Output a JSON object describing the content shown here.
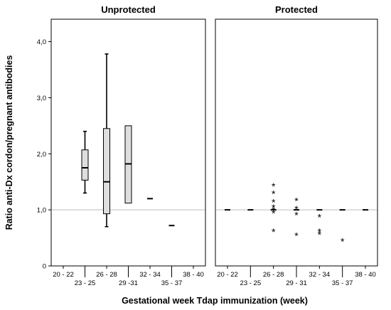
{
  "chart_data": {
    "type": "box",
    "xlabel": "Gestational week Tdap immunization (week)",
    "ylabel": "Ratio anti-Dx cordon/pregnant antibodies",
    "ylim": [
      0,
      4.4
    ],
    "yticks": [
      {
        "value": 0,
        "label": "0"
      },
      {
        "value": 1,
        "label": "1,0"
      },
      {
        "value": 2,
        "label": "2,0"
      },
      {
        "value": 3,
        "label": "3,0"
      },
      {
        "value": 4,
        "label": "4,0"
      }
    ],
    "reference_line": 1.0,
    "categories": [
      "20 - 22",
      "23 - 25",
      "26 - 28",
      "29 -31",
      "32 - 34",
      "35 - 37",
      "38 - 40"
    ],
    "panels": [
      {
        "title": "Unprotected",
        "categories": [
          "20 - 22",
          "23 - 25",
          "26 - 28",
          "29 -31",
          "32 - 34",
          "35 - 37",
          "38 - 40"
        ],
        "boxes": [
          {
            "category": "23 - 25",
            "whisker_low": 1.3,
            "q1": 1.53,
            "median": 1.75,
            "q3": 2.07,
            "whisker_high": 2.4
          },
          {
            "category": "26 - 28",
            "whisker_low": 0.7,
            "q1": 0.93,
            "median": 1.5,
            "q3": 2.45,
            "whisker_high": 3.78
          },
          {
            "category": "29 -31",
            "whisker_low": 1.12,
            "q1": 1.12,
            "median": 1.82,
            "q3": 2.5,
            "whisker_high": 2.5
          },
          {
            "category": "32 - 34",
            "median": 1.2
          },
          {
            "category": "35 - 37",
            "median": 0.72
          }
        ],
        "outliers": []
      },
      {
        "title": "Protected",
        "categories": [
          "20 - 22",
          "23 - 25",
          "26 - 28",
          "29 - 31",
          "32 - 34",
          "35 - 37",
          "38 - 40"
        ],
        "boxes": [
          {
            "category": "20 - 22",
            "median": 1.0
          },
          {
            "category": "23 - 25",
            "median": 1.0
          },
          {
            "category": "26 - 28",
            "median": 1.0
          },
          {
            "category": "29 - 31",
            "median": 1.0
          },
          {
            "category": "32 - 34",
            "median": 1.0
          },
          {
            "category": "35 - 37",
            "median": 1.0
          },
          {
            "category": "38 - 40",
            "median": 1.0
          }
        ],
        "outliers": [
          {
            "category": "26 - 28",
            "values": [
              1.43,
              1.3,
              1.15,
              1.05,
              1.0,
              0.95,
              0.62
            ]
          },
          {
            "category": "29 - 31",
            "values": [
              1.17,
              1.03,
              0.92,
              0.55
            ]
          },
          {
            "category": "32 - 34",
            "values": [
              0.88,
              0.62,
              0.57
            ]
          },
          {
            "category": "35 - 37",
            "values": [
              0.45
            ]
          }
        ]
      }
    ]
  }
}
